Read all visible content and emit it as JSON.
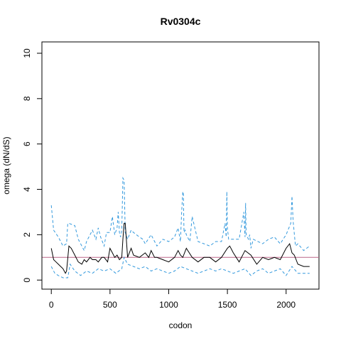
{
  "chart_data": {
    "type": "line",
    "title": "Rv0304c",
    "xlabel": "codon",
    "ylabel": "omega (dN/dS)",
    "xlim": [
      -80,
      2280
    ],
    "ylim": [
      -0.4,
      10.5
    ],
    "xticks": [
      0,
      500,
      1000,
      1500,
      2000
    ],
    "yticks": [
      0,
      2,
      4,
      6,
      8,
      10
    ],
    "grid": false,
    "reference_line": {
      "y": 1,
      "color": "#bb6688"
    },
    "series": [
      {
        "role": "upper",
        "style": "dashed",
        "color": "#3399dd",
        "x": [
          0,
          20,
          60,
          100,
          130,
          140,
          150,
          200,
          230,
          280,
          300,
          350,
          380,
          400,
          420,
          450,
          470,
          500,
          520,
          540,
          560,
          570,
          580,
          590,
          600,
          605,
          610,
          620,
          630,
          650,
          680,
          700,
          750,
          780,
          800,
          850,
          900,
          950,
          1000,
          1050,
          1080,
          1100,
          1110,
          1120,
          1125,
          1130,
          1140,
          1150,
          1180,
          1200,
          1250,
          1300,
          1350,
          1400,
          1450,
          1480,
          1490,
          1495,
          1500,
          1510,
          1550,
          1600,
          1640,
          1650,
          1655,
          1660,
          1680,
          1690,
          1700,
          1720,
          1800,
          1850,
          1900,
          1950,
          2000,
          2040,
          2050,
          2060,
          2080,
          2100,
          2150,
          2200
        ],
        "y": [
          3.3,
          2.2,
          1.9,
          1.5,
          1.6,
          2.5,
          2.5,
          2.4,
          1.8,
          1.3,
          1.7,
          2.2,
          1.8,
          2.3,
          1.9,
          1.5,
          2.1,
          2.1,
          2.8,
          2.0,
          2.3,
          3.0,
          2.1,
          1.9,
          2.2,
          3.3,
          4.5,
          4.4,
          2.1,
          1.8,
          2.2,
          2.1,
          1.9,
          1.8,
          1.6,
          2.0,
          1.5,
          1.8,
          1.7,
          1.9,
          2.3,
          1.7,
          3.0,
          3.9,
          3.8,
          2.1,
          2.2,
          2.0,
          1.7,
          2.8,
          1.7,
          1.6,
          1.5,
          1.7,
          1.7,
          2.5,
          1.9,
          3.9,
          2.3,
          1.8,
          1.8,
          1.8,
          3.0,
          1.9,
          3.4,
          2.0,
          1.8,
          2.0,
          1.4,
          1.8,
          1.6,
          1.8,
          1.9,
          1.6,
          2.0,
          2.5,
          3.7,
          2.6,
          1.5,
          1.6,
          1.3,
          1.5
        ]
      },
      {
        "role": "estimate",
        "style": "solid",
        "color": "#000000",
        "x": [
          0,
          20,
          40,
          60,
          80,
          100,
          120,
          130,
          150,
          170,
          200,
          230,
          260,
          280,
          300,
          330,
          350,
          380,
          400,
          430,
          450,
          480,
          500,
          520,
          540,
          560,
          580,
          600,
          610,
          620,
          630,
          650,
          680,
          700,
          750,
          800,
          830,
          850,
          880,
          900,
          950,
          1000,
          1050,
          1080,
          1100,
          1120,
          1150,
          1200,
          1250,
          1300,
          1350,
          1400,
          1450,
          1500,
          1520,
          1550,
          1600,
          1650,
          1700,
          1750,
          1800,
          1850,
          1900,
          1950,
          2000,
          2030,
          2050,
          2070,
          2100,
          2150,
          2200
        ],
        "y": [
          1.4,
          0.9,
          0.8,
          0.7,
          0.6,
          0.5,
          0.3,
          0.4,
          1.5,
          1.4,
          1.1,
          0.8,
          0.7,
          0.9,
          0.8,
          1.0,
          0.9,
          0.9,
          0.8,
          1.0,
          1.0,
          0.8,
          1.4,
          1.2,
          1.0,
          1.1,
          0.9,
          1.0,
          1.8,
          2.5,
          2.5,
          1.0,
          1.4,
          1.1,
          1.0,
          1.2,
          1.0,
          1.3,
          1.0,
          1.0,
          0.9,
          0.8,
          1.0,
          1.3,
          1.1,
          1.0,
          1.4,
          1.0,
          0.8,
          1.0,
          1.0,
          0.8,
          1.0,
          1.4,
          1.5,
          1.2,
          0.8,
          1.3,
          1.1,
          0.7,
          1.0,
          0.9,
          1.0,
          0.9,
          1.4,
          1.6,
          1.2,
          1.1,
          0.7,
          0.6,
          0.6
        ]
      },
      {
        "role": "lower",
        "style": "dashed",
        "color": "#3399dd",
        "x": [
          0,
          30,
          60,
          100,
          140,
          160,
          200,
          250,
          300,
          350,
          400,
          450,
          500,
          550,
          600,
          620,
          650,
          700,
          750,
          800,
          850,
          900,
          950,
          1000,
          1050,
          1100,
          1150,
          1200,
          1250,
          1300,
          1350,
          1400,
          1450,
          1500,
          1550,
          1600,
          1650,
          1700,
          1750,
          1800,
          1850,
          1900,
          1950,
          2000,
          2050,
          2100,
          2150,
          2200
        ],
        "y": [
          0.6,
          0.3,
          0.2,
          0.1,
          0.1,
          0.7,
          0.4,
          0.2,
          0.4,
          0.3,
          0.5,
          0.4,
          0.5,
          0.3,
          0.5,
          1.0,
          0.7,
          0.6,
          0.5,
          0.6,
          0.4,
          0.5,
          0.4,
          0.3,
          0.4,
          0.6,
          0.5,
          0.4,
          0.3,
          0.4,
          0.5,
          0.4,
          0.5,
          0.4,
          0.3,
          0.4,
          0.5,
          0.2,
          0.4,
          0.5,
          0.3,
          0.4,
          0.5,
          0.2,
          0.6,
          0.3,
          0.3,
          0.3
        ]
      }
    ]
  }
}
